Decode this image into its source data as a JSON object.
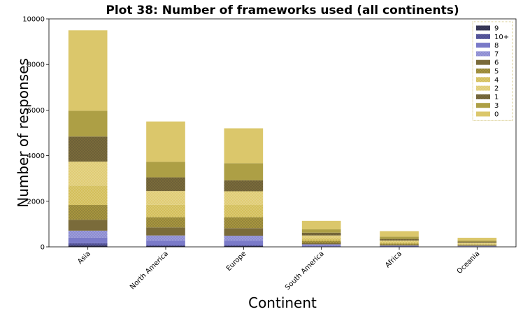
{
  "chart_data": {
    "type": "bar",
    "stacked": true,
    "title": "Plot 38: Number of frameworks used (all continents)",
    "xlabel": "Continent",
    "ylabel": "Number of responses",
    "ylim": [
      0,
      10000
    ],
    "yticks": [
      "0",
      "2000",
      "4000",
      "6000",
      "8000",
      "10000"
    ],
    "grid": false,
    "legend_position": "top-right",
    "categories": [
      "Asia",
      "North America",
      "Europe",
      "South America",
      "Africa",
      "Oceania"
    ],
    "series": [
      {
        "name": "9",
        "color": "#3a3a5c",
        "pattern": "dots-dense",
        "values": [
          60,
          30,
          30,
          8,
          4,
          3
        ]
      },
      {
        "name": "10+",
        "color": "#5858a0",
        "pattern": "dots",
        "values": [
          100,
          50,
          50,
          12,
          6,
          5
        ]
      },
      {
        "name": "8",
        "color": "#7a7ac8",
        "pattern": "solid",
        "values": [
          250,
          200,
          180,
          40,
          20,
          15
        ]
      },
      {
        "name": "7",
        "color": "#8c8cd2",
        "pattern": "dots-light",
        "values": [
          300,
          220,
          230,
          50,
          25,
          20
        ]
      },
      {
        "name": "6",
        "color": "#7a6b3a",
        "pattern": "solid",
        "values": [
          480,
          350,
          330,
          60,
          35,
          25
        ]
      },
      {
        "name": "5",
        "color": "#a8963e",
        "pattern": "dots",
        "values": [
          650,
          450,
          480,
          90,
          50,
          35
        ]
      },
      {
        "name": "4",
        "color": "#d4bf5a",
        "pattern": "dots-light",
        "values": [
          850,
          550,
          540,
          110,
          60,
          40
        ]
      },
      {
        "name": "2",
        "color": "#e0cc74",
        "pattern": "dots-light",
        "values": [
          1050,
          600,
          600,
          130,
          80,
          45
        ]
      },
      {
        "name": "1",
        "color": "#7a6b3a",
        "pattern": "dots",
        "values": [
          1100,
          600,
          480,
          120,
          70,
          40
        ]
      },
      {
        "name": "3",
        "color": "#ad9f45",
        "pattern": "solid",
        "values": [
          1130,
          680,
          750,
          150,
          100,
          52
        ]
      },
      {
        "name": "0",
        "color": "#dbc76b",
        "pattern": "solid",
        "values": [
          3530,
          1770,
          1530,
          370,
          240,
          120
        ]
      }
    ]
  }
}
